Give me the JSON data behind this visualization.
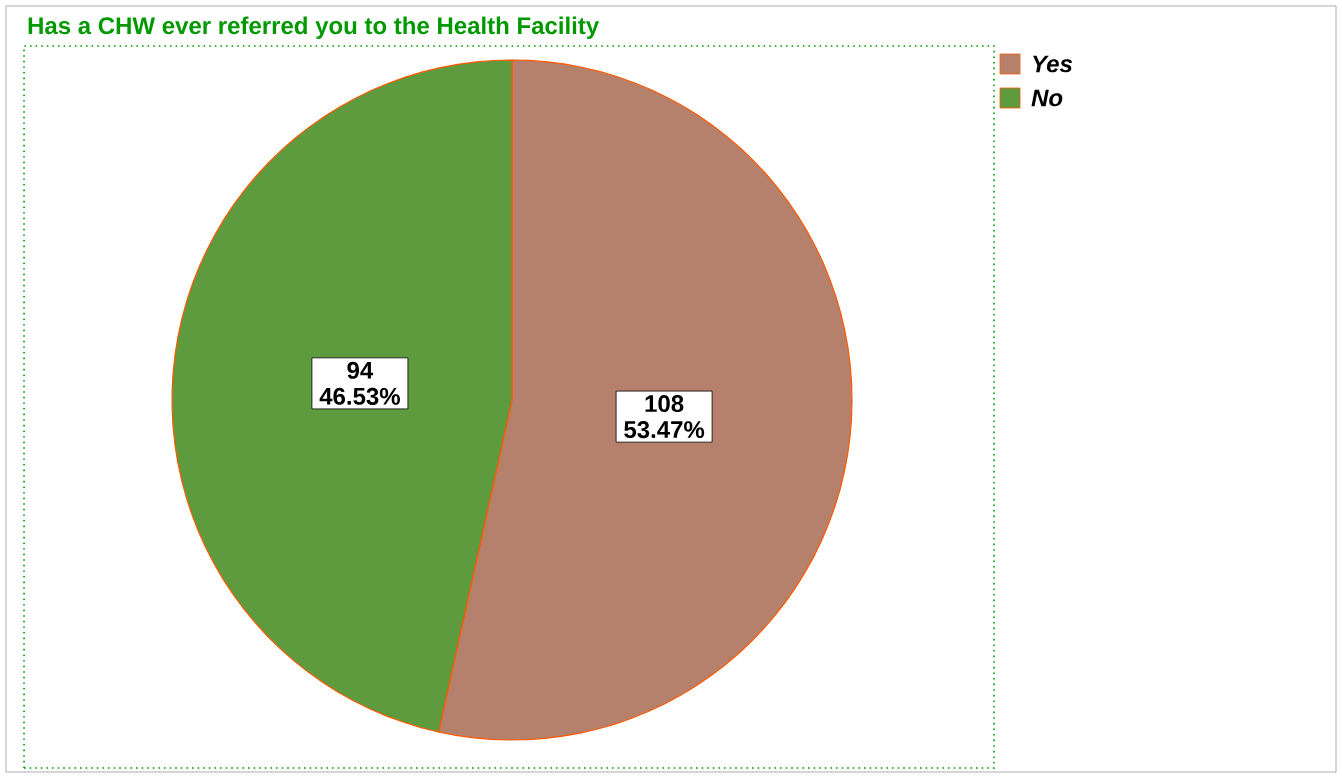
{
  "chart_data": {
    "type": "pie",
    "title": "Has a CHW ever referred you to the Health Facility",
    "categories": [
      "Yes",
      "No"
    ],
    "values": [
      108,
      94
    ],
    "colors": [
      "#b5816c",
      "#5e9a3e"
    ],
    "value_labels": [
      "108 53.47%",
      "94 46.53%"
    ],
    "legend": "top right"
  }
}
